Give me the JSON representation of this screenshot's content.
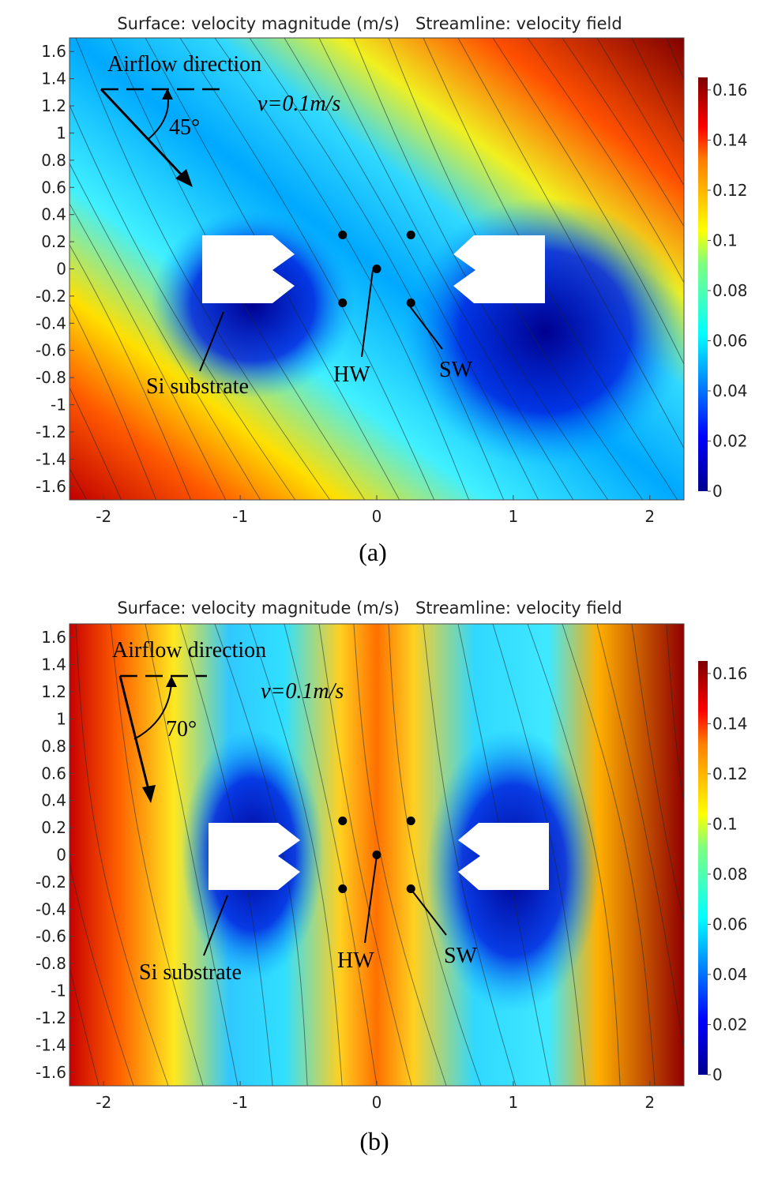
{
  "chart_data": [
    {
      "type": "heatmap",
      "panel_label": "(a)",
      "title": "Surface: velocity magnitude (m/s)   Streamline: velocity field",
      "xlim": [
        -2.25,
        2.25
      ],
      "ylim": [
        -1.7,
        1.7
      ],
      "x_ticks": [
        -2,
        -1,
        0,
        1,
        2
      ],
      "y_ticks": [
        1.6,
        1.4,
        1.2,
        1,
        0.8,
        0.6,
        0.4,
        0.2,
        0,
        -0.2,
        -0.4,
        -0.6,
        -0.8,
        -1,
        -1.2,
        -1.4,
        -1.6
      ],
      "colorbar": {
        "min": 0,
        "max": 0.165,
        "ticks": [
          0.16,
          0.14,
          0.12,
          0.1,
          0.08,
          0.06,
          0.04,
          0.02,
          0
        ]
      },
      "colors": {
        "low": "#00008f",
        "mid_low": "#00c8ff",
        "mid": "#f5f520",
        "mid_high": "#ff6a00",
        "high": "#800000"
      },
      "annotations": {
        "airflow_label": "Airflow direction",
        "angle_label": "45°",
        "velocity_label": "v=0.1m/s",
        "substrate_label": "Si substrate",
        "hw_label": "HW",
        "sw_label": "SW"
      },
      "airflow_angle_deg": 45,
      "wire_points": [
        [
          -0.25,
          0.25
        ],
        [
          0.25,
          0.25
        ],
        [
          0,
          0
        ],
        [
          -0.25,
          -0.25
        ],
        [
          0.25,
          -0.25
        ]
      ]
    },
    {
      "type": "heatmap",
      "panel_label": "(b)",
      "title": "Surface: velocity magnitude (m/s)   Streamline: velocity field",
      "xlim": [
        -2.25,
        2.25
      ],
      "ylim": [
        -1.7,
        1.7
      ],
      "x_ticks": [
        -2,
        -1,
        0,
        1,
        2
      ],
      "y_ticks": [
        1.6,
        1.4,
        1.2,
        1,
        0.8,
        0.6,
        0.4,
        0.2,
        0,
        -0.2,
        -0.4,
        -0.6,
        -0.8,
        -1,
        -1.2,
        -1.4,
        -1.6
      ],
      "colorbar": {
        "min": 0,
        "max": 0.165,
        "ticks": [
          0.16,
          0.14,
          0.12,
          0.1,
          0.08,
          0.06,
          0.04,
          0.02,
          0
        ]
      },
      "colors": {
        "low": "#00008f",
        "mid_low": "#00c8ff",
        "mid": "#f5f520",
        "mid_high": "#ff6a00",
        "high": "#800000"
      },
      "annotations": {
        "airflow_label": "Airflow direction",
        "angle_label": "70°",
        "velocity_label": "v=0.1m/s",
        "substrate_label": "Si substrate",
        "hw_label": "HW",
        "sw_label": "SW"
      },
      "airflow_angle_deg": 70,
      "wire_points": [
        [
          -0.25,
          0.25
        ],
        [
          0.25,
          0.25
        ],
        [
          0,
          0
        ],
        [
          -0.25,
          -0.25
        ],
        [
          0.25,
          -0.25
        ]
      ]
    }
  ]
}
